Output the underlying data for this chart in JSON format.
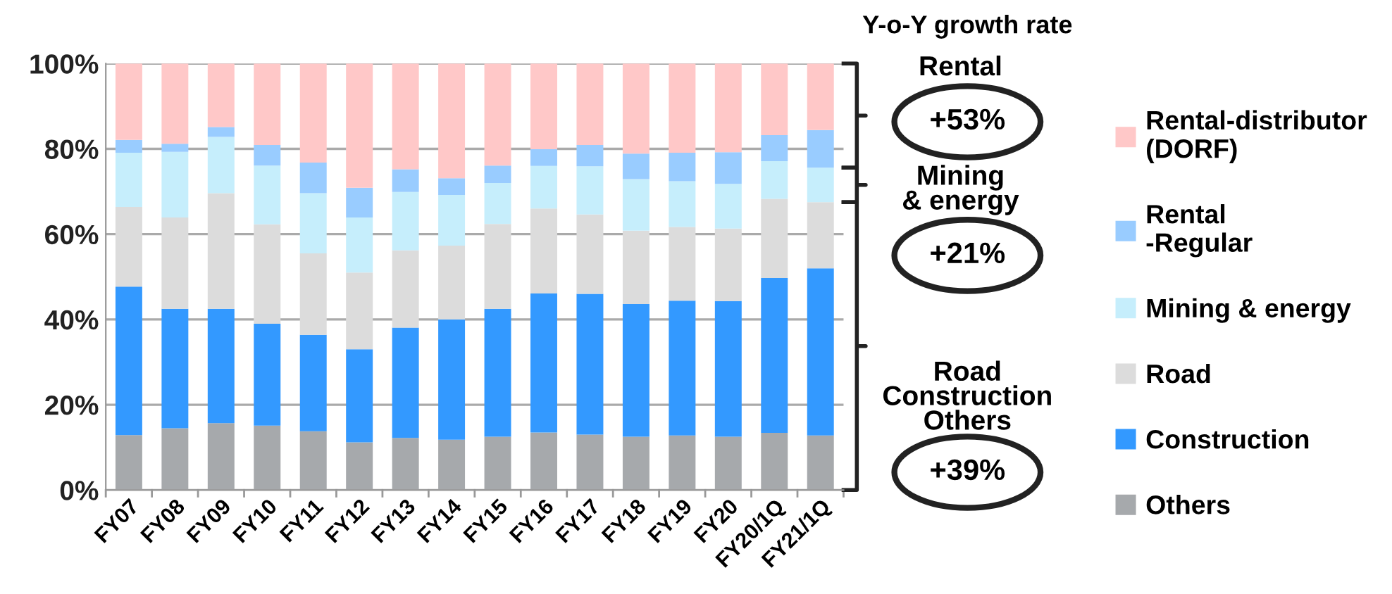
{
  "chart_data": {
    "type": "bar",
    "stacked": true,
    "categories": [
      "FY07",
      "FY08",
      "FY09",
      "FY10",
      "FY11",
      "FY12",
      "FY13",
      "FY14",
      "FY15",
      "FY16",
      "FY17",
      "FY18",
      "FY19",
      "FY20",
      "FY20/1Q",
      "FY21/1Q"
    ],
    "series": [
      {
        "name": "Others",
        "color": "#a6a9ac",
        "values": [
          12.9,
          14.5,
          15.7,
          15.1,
          13.8,
          11.2,
          12.2,
          11.8,
          12.5,
          13.5,
          13.0,
          12.5,
          12.8,
          12.5,
          13.4,
          12.8
        ]
      },
      {
        "name": "Construction",
        "color": "#3399ff",
        "values": [
          34.8,
          28.0,
          26.8,
          23.9,
          22.6,
          21.8,
          25.9,
          28.2,
          30.0,
          32.6,
          33.0,
          31.1,
          31.6,
          31.8,
          36.3,
          39.2
        ]
      },
      {
        "name": "Road",
        "color": "#dcdcdc",
        "values": [
          18.7,
          21.4,
          27.1,
          23.3,
          19.1,
          18.0,
          18.1,
          17.3,
          19.9,
          19.9,
          18.6,
          17.2,
          17.3,
          17.0,
          18.6,
          15.5
        ]
      },
      {
        "name": "Mining & energy",
        "color": "#c6eefc",
        "values": [
          12.7,
          15.4,
          13.2,
          13.8,
          14.1,
          12.9,
          13.7,
          11.9,
          9.6,
          10.0,
          11.3,
          12.1,
          10.7,
          10.5,
          8.8,
          8.1
        ]
      },
      {
        "name": "Rental\n-Regular",
        "color": "#99ccff",
        "values": [
          3.0,
          1.9,
          2.3,
          4.8,
          7.2,
          7.0,
          5.3,
          3.9,
          4.1,
          3.9,
          5.0,
          6.0,
          6.7,
          7.4,
          6.1,
          8.8
        ]
      },
      {
        "name": "Rental-distributor\n(DORF)",
        "color": "#ffc8c8",
        "values": [
          17.9,
          18.8,
          14.9,
          19.1,
          23.2,
          29.1,
          24.8,
          26.9,
          23.9,
          20.1,
          19.1,
          21.1,
          20.9,
          20.8,
          16.8,
          15.6
        ]
      }
    ],
    "ylim": [
      0,
      100
    ],
    "yticks": [
      {
        "value": 0,
        "label": "0%"
      },
      {
        "value": 20,
        "label": "20%"
      },
      {
        "value": 40,
        "label": "40%"
      },
      {
        "value": 60,
        "label": "60%"
      },
      {
        "value": 80,
        "label": "80%"
      },
      {
        "value": 100,
        "label": "100%"
      }
    ],
    "grid": "y",
    "legend": "right",
    "annotations": [
      "Y-o-Y growth rate",
      "Rental",
      "+53%",
      "Mining\n& energy",
      "+21%",
      "Road\nConstruction\nOthers",
      "+39%"
    ]
  }
}
